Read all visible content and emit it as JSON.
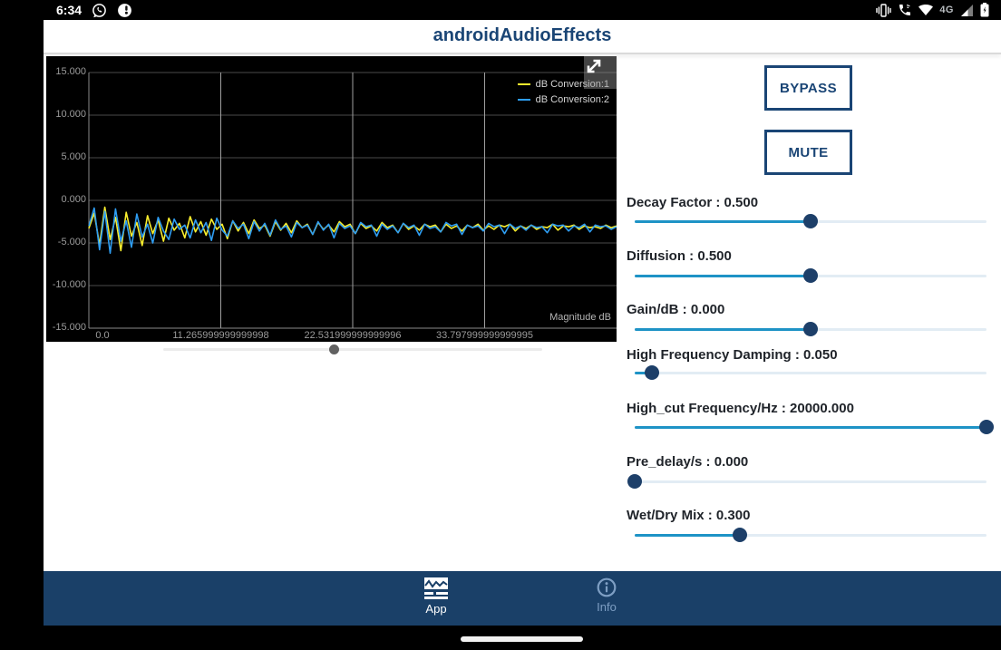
{
  "status_bar": {
    "time": "6:34",
    "network_label": "4G",
    "icons": [
      "whatsapp-icon",
      "app-badge-icon",
      "vibrate-icon",
      "wifi-calling-icon",
      "wifi-icon",
      "signal-icon",
      "battery-charging-icon"
    ]
  },
  "header": {
    "title": "androidAudioEffects"
  },
  "chart": {
    "y_ticks": [
      "15.000",
      "10.000",
      "5.000",
      "0.000",
      "-5.000",
      "-10.000",
      "-15.000"
    ],
    "x_ticks": [
      "0.0",
      "11.265999999999998",
      "22.531999999999996",
      "33.797999999999995"
    ],
    "axis_note": "Magnitude dB",
    "legend": [
      "dB Conversion:1",
      "dB Conversion:2"
    ]
  },
  "chart_data": {
    "type": "line",
    "title": "",
    "xlabel": "",
    "ylabel": "Magnitude dB",
    "ylim": [
      -15,
      15
    ],
    "x_range": [
      0,
      45.064
    ],
    "x_tick_values": [
      0,
      11.265999999999998,
      22.531999999999996,
      33.797999999999995
    ],
    "grid": true,
    "legend_position": "top-right",
    "series": [
      {
        "name": "dB Conversion:1",
        "color": "#f9ee2d",
        "values": [
          -3.3,
          -1.5,
          -5.2,
          -0.8,
          -4.6,
          -2.0,
          -5.9,
          -1.4,
          -4.2,
          -2.6,
          -5.3,
          -1.8,
          -3.9,
          -2.3,
          -4.8,
          -2.1,
          -3.5,
          -2.7,
          -4.4,
          -1.9,
          -3.7,
          -2.5,
          -4.1,
          -2.2,
          -3.4,
          -2.8,
          -4.5,
          -2.4,
          -3.6,
          -2.6,
          -3.9,
          -2.3,
          -3.3,
          -2.9,
          -4.2,
          -2.5,
          -3.5,
          -2.7,
          -3.8,
          -2.4,
          -3.2,
          -2.8,
          -4.0,
          -2.6,
          -3.4,
          -2.9,
          -3.7,
          -2.5,
          -3.1,
          -2.8,
          -3.9,
          -2.7,
          -3.3,
          -3.0,
          -3.6,
          -2.6,
          -3.2,
          -2.9,
          -3.8,
          -2.7,
          -3.4,
          -3.0,
          -3.5,
          -2.8,
          -3.1,
          -2.9,
          -3.7,
          -2.8,
          -3.3,
          -3.0,
          -3.6,
          -2.9,
          -3.2,
          -2.8,
          -3.5,
          -3.0,
          -3.4,
          -2.9,
          -3.1,
          -2.8,
          -3.6,
          -3.0,
          -3.3,
          -2.9,
          -3.4,
          -3.1,
          -3.2,
          -2.8,
          -3.5,
          -3.0,
          -3.1,
          -2.9,
          -3.4,
          -3.0,
          -3.2,
          -3.1,
          -3.3,
          -2.9,
          -3.2,
          -3.0
        ]
      },
      {
        "name": "dB Conversion:2",
        "color": "#2e9df2",
        "values": [
          -3.0,
          -0.9,
          -5.8,
          -1.3,
          -6.2,
          -1.0,
          -4.8,
          -2.4,
          -5.5,
          -1.6,
          -4.3,
          -2.8,
          -5.0,
          -2.0,
          -3.6,
          -4.6,
          -2.2,
          -3.4,
          -2.9,
          -4.4,
          -2.3,
          -3.8,
          -2.6,
          -4.7,
          -2.1,
          -3.5,
          -4.2,
          -2.4,
          -3.3,
          -2.8,
          -4.5,
          -2.5,
          -3.6,
          -2.7,
          -4.1,
          -2.3,
          -3.4,
          -3.0,
          -4.3,
          -2.6,
          -3.2,
          -2.9,
          -4.0,
          -2.5,
          -3.5,
          -2.8,
          -4.4,
          -2.7,
          -3.3,
          -3.0,
          -3.9,
          -2.6,
          -3.1,
          -2.9,
          -4.2,
          -2.8,
          -3.4,
          -3.0,
          -3.8,
          -2.7,
          -3.2,
          -2.9,
          -4.1,
          -2.8,
          -3.3,
          -3.1,
          -3.7,
          -2.6,
          -3.0,
          -2.8,
          -4.0,
          -2.9,
          -3.2,
          -3.0,
          -3.6,
          -2.7,
          -3.1,
          -2.9,
          -3.9,
          -2.8,
          -3.3,
          -3.0,
          -3.5,
          -2.9,
          -3.2,
          -3.1,
          -3.8,
          -2.8,
          -3.0,
          -2.9,
          -3.6,
          -3.0,
          -3.2,
          -2.8,
          -3.7,
          -2.9,
          -3.1,
          -3.0,
          -3.4,
          -3.1
        ]
      }
    ]
  },
  "chart_scroll": {
    "percent": 45
  },
  "controls": {
    "bypass_label": "BYPASS",
    "mute_label": "MUTE",
    "sliders": [
      {
        "id": "decay-factor",
        "label": "Decay Factor : 0.500",
        "percent": 50
      },
      {
        "id": "diffusion",
        "label": "Diffusion : 0.500",
        "percent": 50
      },
      {
        "id": "gain",
        "label": "Gain/dB : 0.000",
        "percent": 50
      },
      {
        "id": "high-frequency-damping",
        "label": "High Frequency Damping : 0.050",
        "percent": 5
      },
      {
        "id": "high-cut-frequency",
        "label": "High_cut Frequency/Hz : 20000.000",
        "percent": 100
      },
      {
        "id": "pre-delay",
        "label": "Pre_delay/s : 0.000",
        "percent": 0
      },
      {
        "id": "wet-dry-mix",
        "label": "Wet/Dry Mix : 0.300",
        "percent": 30
      }
    ]
  },
  "nav": {
    "tabs": [
      {
        "label": "App",
        "active": true
      },
      {
        "label": "Info",
        "active": false
      }
    ]
  },
  "colors": {
    "brand": "#1a4575",
    "navbar": "#1a4068",
    "nav_inactive": "#7e9fc4",
    "slider_fill": "#1e93c6",
    "slider_track": "#e2ecf4",
    "slider_thumb": "#1d3f69"
  }
}
